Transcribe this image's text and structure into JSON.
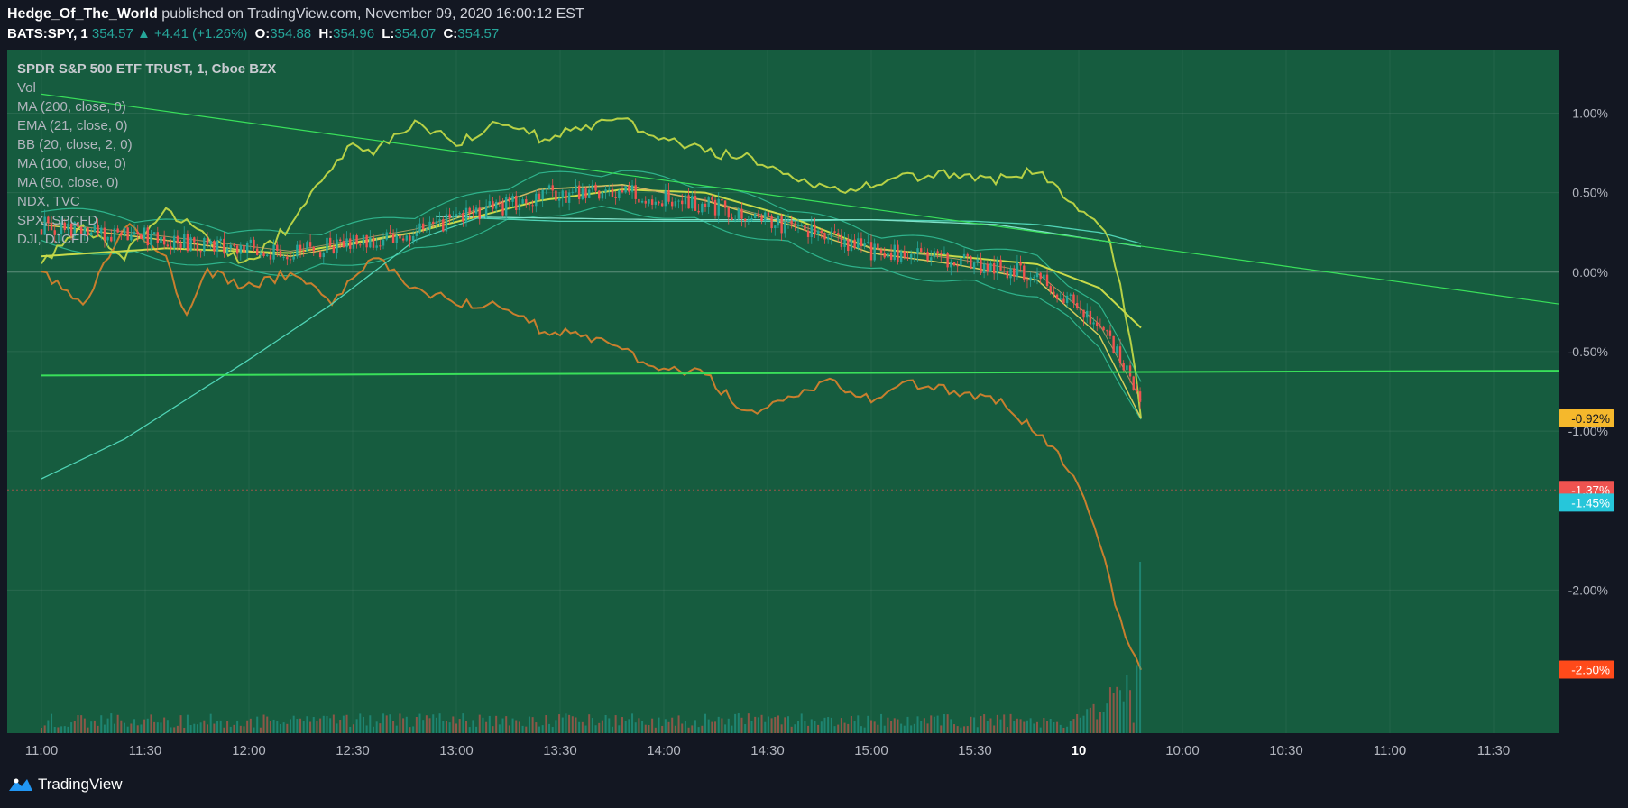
{
  "header": {
    "author": "Hedge_Of_The_World",
    "published": "published on TradingView.com, November 09, 2020 16:00:12 EST",
    "symbol": "BATS:SPY, 1",
    "price": "354.57",
    "change": "+4.41 (+1.26%)",
    "open_label": "O:",
    "open": "354.88",
    "high_label": "H:",
    "high": "354.96",
    "low_label": "L:",
    "low": "354.07",
    "close_label": "C:",
    "close": "354.57",
    "up_arrow": "▲"
  },
  "legend": {
    "title": "SPDR S&P 500 ETF TRUST, 1, Cboe BZX",
    "items": [
      "Vol",
      "MA (200, close, 0)",
      "EMA (21, close, 0)",
      "BB (20, close, 2, 0)",
      "MA (100, close, 0)",
      "MA (50, close, 0)",
      "NDX, TVC",
      "SPX, SPCFD",
      "DJI, DJCFD"
    ]
  },
  "footer": {
    "brand": "TradingView"
  },
  "colors": {
    "plot_bg": "#165c3f",
    "page_bg": "#131722",
    "ndx": "#b7d146",
    "spx": "#c87f2e",
    "dji": "#4fd3b5",
    "ma200": "#7fe0c8",
    "ema21": "#c9a86a",
    "ma100": "#c8da4a",
    "ma50": "#d4cc5a",
    "bb": "#2fb38c",
    "trend": "#39e05a",
    "up": "#26a69a",
    "down": "#ef5350"
  },
  "chart_data": {
    "type": "line",
    "x_ticks": [
      "11:00",
      "11:30",
      "12:00",
      "12:30",
      "13:00",
      "13:30",
      "14:00",
      "14:30",
      "15:00",
      "15:30",
      "10",
      "10:00",
      "10:30",
      "11:00",
      "11:30"
    ],
    "y_ticks": [
      "1.00%",
      "0.50%",
      "0.00%",
      "-0.50%",
      "-1.00%",
      "-2.00%"
    ],
    "ylim": [
      -2.9,
      1.4
    ],
    "price_labels": [
      {
        "value": -0.92,
        "text": "-0.92%",
        "color": "#f5b82c"
      },
      {
        "value": -1.37,
        "text": "-1.37%",
        "color": "#ef5350"
      },
      {
        "value": -1.45,
        "text": "-1.45%",
        "color": "#26c6da"
      },
      {
        "value": -2.5,
        "text": "-2.50%",
        "color": "#ff4a1a"
      }
    ],
    "series": [
      {
        "key": "ndx",
        "points": [
          [
            0,
            0.05
          ],
          [
            2,
            0.3
          ],
          [
            4,
            0.1
          ],
          [
            6,
            0.4
          ],
          [
            8,
            0.2
          ],
          [
            10,
            0.05
          ],
          [
            12,
            0.3
          ],
          [
            14,
            0.65
          ],
          [
            15,
            0.8
          ],
          [
            16,
            0.75
          ],
          [
            18,
            0.95
          ],
          [
            20,
            0.8
          ],
          [
            22,
            0.95
          ],
          [
            24,
            0.85
          ],
          [
            26,
            0.9
          ],
          [
            28,
            0.95
          ],
          [
            30,
            0.85
          ],
          [
            32,
            0.75
          ],
          [
            34,
            0.72
          ],
          [
            36,
            0.6
          ],
          [
            38,
            0.5
          ],
          [
            40,
            0.55
          ],
          [
            42,
            0.6
          ],
          [
            44,
            0.62
          ],
          [
            46,
            0.58
          ],
          [
            48,
            0.65
          ],
          [
            50,
            0.38
          ],
          [
            51,
            0.3
          ],
          [
            51.6,
            0.15
          ],
          [
            52,
            -0.1
          ],
          [
            52.6,
            -0.5
          ],
          [
            53,
            -0.92
          ]
        ]
      },
      {
        "key": "spx",
        "points": [
          [
            0,
            0.0
          ],
          [
            2,
            -0.2
          ],
          [
            4,
            0.3
          ],
          [
            6,
            0.1
          ],
          [
            7,
            -0.3
          ],
          [
            8,
            0.0
          ],
          [
            10,
            -0.1
          ],
          [
            12,
            0.0
          ],
          [
            14,
            -0.2
          ],
          [
            16,
            0.1
          ],
          [
            18,
            -0.1
          ],
          [
            20,
            -0.2
          ],
          [
            22,
            -0.2
          ],
          [
            24,
            -0.35
          ],
          [
            26,
            -0.4
          ],
          [
            28,
            -0.5
          ],
          [
            30,
            -0.6
          ],
          [
            32,
            -0.65
          ],
          [
            34,
            -0.9
          ],
          [
            36,
            -0.8
          ],
          [
            38,
            -0.7
          ],
          [
            40,
            -0.8
          ],
          [
            42,
            -0.7
          ],
          [
            44,
            -0.75
          ],
          [
            46,
            -0.8
          ],
          [
            48,
            -1.0
          ],
          [
            49,
            -1.15
          ],
          [
            50,
            -1.35
          ],
          [
            51,
            -1.7
          ],
          [
            52,
            -2.2
          ],
          [
            52.6,
            -2.4
          ],
          [
            53,
            -2.5
          ]
        ]
      },
      {
        "key": "dji",
        "points": [
          [
            0,
            -1.3
          ],
          [
            4,
            -1.05
          ],
          [
            7,
            -0.8
          ],
          [
            10,
            -0.55
          ],
          [
            14,
            -0.2
          ],
          [
            18,
            0.2
          ],
          [
            21,
            0.34
          ],
          [
            25,
            0.32
          ],
          [
            30,
            0.32
          ],
          [
            35,
            0.32
          ],
          [
            40,
            0.33
          ],
          [
            45,
            0.32
          ],
          [
            48,
            0.3
          ],
          [
            51,
            0.25
          ],
          [
            53,
            0.18
          ]
        ]
      },
      {
        "key": "ma200",
        "points": [
          [
            19,
            0.35
          ],
          [
            30,
            0.33
          ],
          [
            40,
            0.33
          ],
          [
            46,
            0.3
          ],
          [
            50,
            0.22
          ],
          [
            53,
            0.16
          ]
        ]
      },
      {
        "key": "ma100",
        "points": [
          [
            0,
            0.1
          ],
          [
            6,
            0.15
          ],
          [
            12,
            0.12
          ],
          [
            18,
            0.25
          ],
          [
            24,
            0.45
          ],
          [
            28,
            0.52
          ],
          [
            32,
            0.5
          ],
          [
            36,
            0.35
          ],
          [
            40,
            0.15
          ],
          [
            44,
            0.1
          ],
          [
            48,
            0.05
          ],
          [
            51,
            -0.1
          ],
          [
            53,
            -0.35
          ]
        ]
      },
      {
        "key": "ma50",
        "points": [
          [
            0,
            0.3
          ],
          [
            6,
            0.2
          ],
          [
            12,
            0.1
          ],
          [
            18,
            0.25
          ],
          [
            24,
            0.52
          ],
          [
            28,
            0.55
          ],
          [
            32,
            0.45
          ],
          [
            36,
            0.3
          ],
          [
            40,
            0.12
          ],
          [
            44,
            0.05
          ],
          [
            48,
            -0.05
          ],
          [
            51,
            -0.4
          ],
          [
            53,
            -0.92
          ]
        ]
      }
    ],
    "trendlines": [
      {
        "from": [
          0,
          1.12
        ],
        "to": [
          75,
          -0.2
        ],
        "width": 1.2
      },
      {
        "from": [
          0,
          -0.65
        ],
        "to": [
          75,
          -0.62
        ],
        "width": 2
      }
    ]
  }
}
